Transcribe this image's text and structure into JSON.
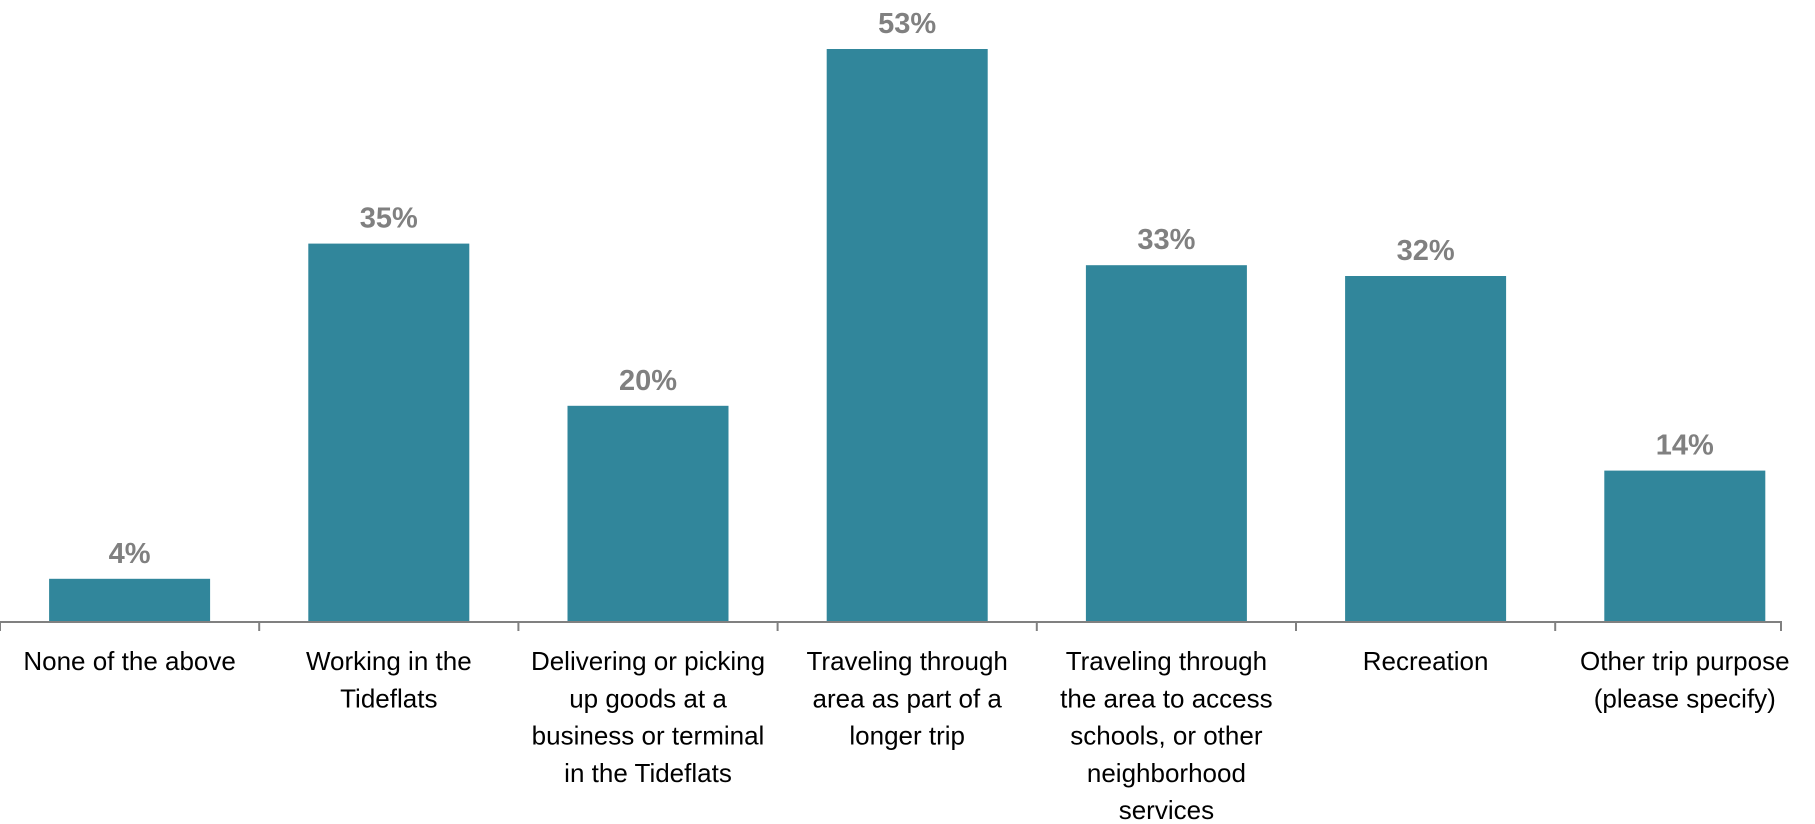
{
  "chart_data": {
    "type": "bar",
    "categories": [
      "None of the above",
      "Working in the Tideflats",
      "Delivering or picking up goods at a business or terminal in the Tideflats",
      "Traveling through area as part of a longer trip",
      "Traveling through the area to access schools, or other neighborhood services",
      "Recreation",
      "Other trip purpose (please specify)"
    ],
    "category_label_lines": [
      [
        "None of the above"
      ],
      [
        "Working in the",
        "Tideflats"
      ],
      [
        "Delivering or picking",
        "up goods at a",
        "business or terminal",
        "in the Tideflats"
      ],
      [
        "Traveling through",
        "area as part of a",
        "longer trip"
      ],
      [
        "Traveling through",
        "the area to access",
        "schools, or other",
        "neighborhood",
        "services"
      ],
      [
        "Recreation"
      ],
      [
        "Other trip purpose",
        "(please specify)"
      ]
    ],
    "values": [
      4,
      35,
      20,
      53,
      33,
      32,
      14
    ],
    "value_labels": [
      "4%",
      "35%",
      "20%",
      "53%",
      "33%",
      "32%",
      "14%"
    ],
    "unit": "%",
    "title": "",
    "xlabel": "",
    "ylabel": "",
    "ylim": [
      0,
      53
    ],
    "grid": false,
    "legend": "none",
    "colors": {
      "bar": "#31869B",
      "axis": "#808080",
      "value_label": "#808080",
      "category_label": "#000000"
    }
  }
}
